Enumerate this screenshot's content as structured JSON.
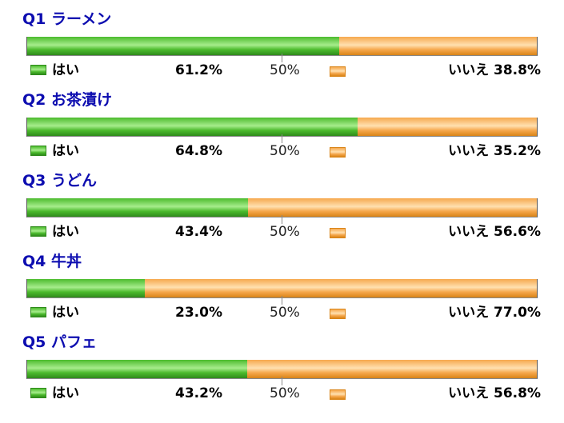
{
  "colors": {
    "title": "#0d0db0",
    "yes_fill": "#4cbb2d",
    "yes_highlight": "#a6ec8c",
    "yes_border": "#2f8a1b",
    "no_fill": "#f6a84d",
    "no_highlight": "#ffe0b0",
    "no_border": "#d98417"
  },
  "chart_data": {
    "type": "bar",
    "orientation": "horizontal-stacked",
    "scale": [
      0,
      100
    ],
    "reference_label": "50%",
    "series_labels": {
      "yes": "はい",
      "no": "いいえ"
    },
    "questions": [
      {
        "title": "Q1 ラーメン",
        "yes": 61.2,
        "no": 38.8,
        "yes_text": "61.2%",
        "no_text": "いいえ 38.8%"
      },
      {
        "title": "Q2 お茶漬け",
        "yes": 64.8,
        "no": 35.2,
        "yes_text": "64.8%",
        "no_text": "いいえ 35.2%"
      },
      {
        "title": "Q3 うどん",
        "yes": 43.4,
        "no": 56.6,
        "yes_text": "43.4%",
        "no_text": "いいえ 56.6%"
      },
      {
        "title": "Q4 牛丼",
        "yes": 23.0,
        "no": 77.0,
        "yes_text": "23.0%",
        "no_text": "いいえ 77.0%"
      },
      {
        "title": "Q5 パフェ",
        "yes": 43.2,
        "no": 56.8,
        "yes_text": "43.2%",
        "no_text": "いいえ 56.8%"
      }
    ]
  }
}
